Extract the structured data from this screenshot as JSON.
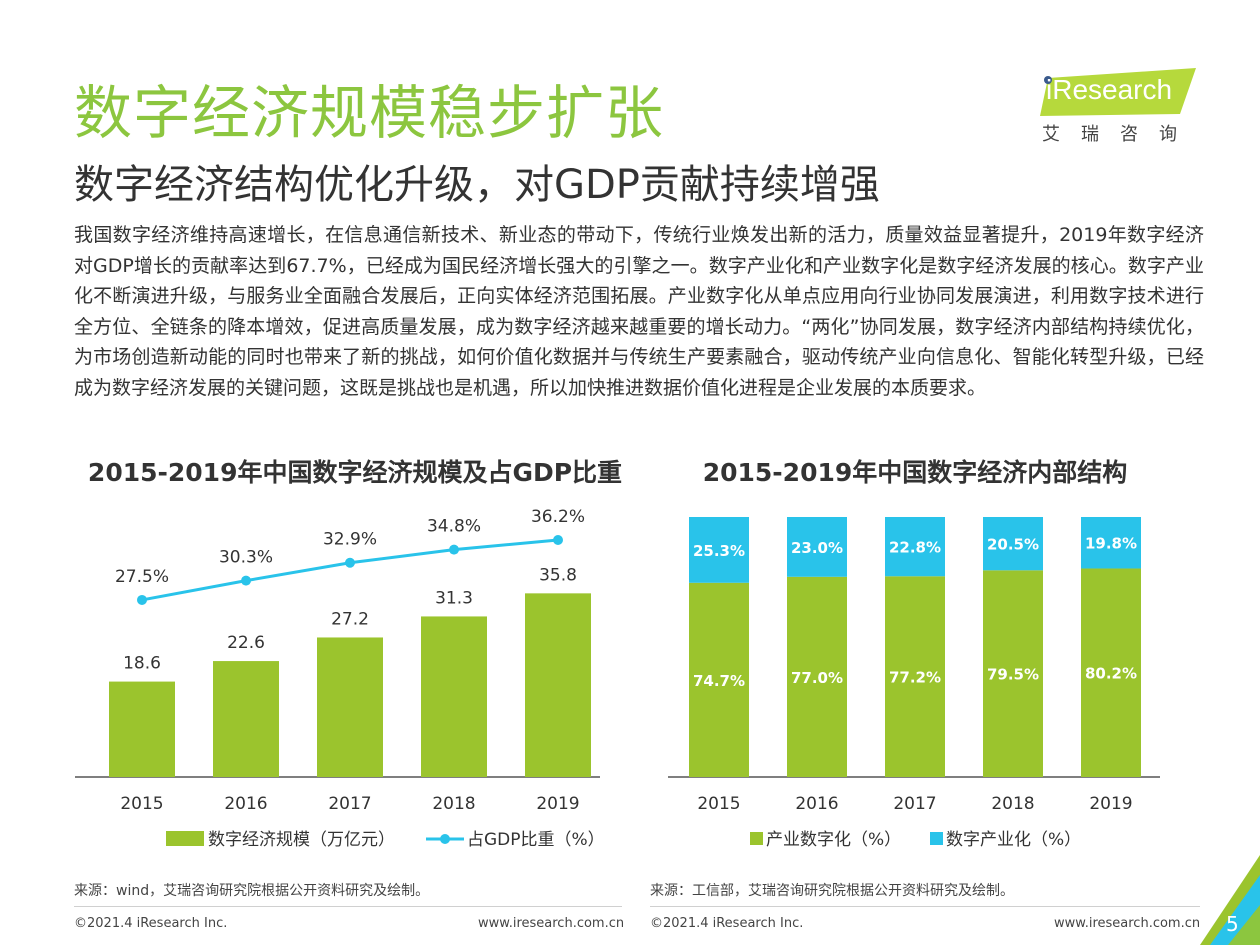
{
  "header": {
    "title": "数字经济规模稳步扩张",
    "subtitle": "数字经济结构优化升级，对GDP贡献持续增强",
    "body": "我国数字经济维持高速增长，在信息通信新技术、新业态的带动下，传统行业焕发出新的活力，质量效益显著提升，2019年数字经济对GDP增长的贡献率达到67.7%，已经成为国民经济增长强大的引擎之一。数字产业化和产业数字化是数字经济发展的核心。数字产业化不断演进升级，与服务业全面融合发展后，正向实体经济范围拓展。产业数字化从单点应用向行业协同发展演进，利用数字技术进行全方位、全链条的降本增效，促进高质量发展，成为数字经济越来越重要的增长动力。“两化”协同发展，数字经济内部结构持续优化，为市场创造新动能的同时也带来了新的挑战，如何价值化数据并与传统生产要素融合，驱动传统产业向信息化、智能化转型升级，已经成为数字经济发展的关键问题，这既是挑战也是机遇，所以加快推进数据价值化进程是企业发展的本质要求。"
  },
  "logo": {
    "text": "iResearch",
    "cn": "艾瑞咨询"
  },
  "colors": {
    "green": "#9bc42d",
    "blue": "#29c3ea",
    "title_green": "#8cc63f",
    "logo_green": "#b6d93c",
    "logo_dark": "#3a5a8c"
  },
  "chart_data": [
    {
      "type": "bar",
      "title": "2015-2019年中国数字经济规模及占GDP比重",
      "categories": [
        "2015",
        "2016",
        "2017",
        "2018",
        "2019"
      ],
      "series": [
        {
          "name": "数字经济规模（万亿元）",
          "type": "bar",
          "values": [
            18.6,
            22.6,
            27.2,
            31.3,
            35.8
          ],
          "labels": [
            "18.6",
            "22.6",
            "27.2",
            "31.3",
            "35.8"
          ]
        },
        {
          "name": "占GDP比重（%）",
          "type": "line",
          "values": [
            27.5,
            30.3,
            32.9,
            34.8,
            36.2
          ],
          "labels": [
            "27.5%",
            "30.3%",
            "32.9%",
            "34.8%",
            "36.2%"
          ]
        }
      ],
      "legend_position": "bottom",
      "grid": false
    },
    {
      "type": "bar",
      "stacked": true,
      "title": "2015-2019年中国数字经济内部结构",
      "categories": [
        "2015",
        "2016",
        "2017",
        "2018",
        "2019"
      ],
      "series": [
        {
          "name": "产业数字化（%）",
          "values": [
            74.7,
            77.0,
            77.2,
            79.5,
            80.2
          ],
          "labels": [
            "74.7%",
            "77.0%",
            "77.2%",
            "79.5%",
            "80.2%"
          ]
        },
        {
          "name": "数字产业化（%）",
          "values": [
            25.3,
            23.0,
            22.8,
            20.5,
            19.8
          ],
          "labels": [
            "25.3%",
            "23.0%",
            "22.8%",
            "20.5%",
            "19.8%"
          ]
        }
      ],
      "ylim": [
        0,
        100
      ],
      "legend_position": "bottom",
      "grid": false
    }
  ],
  "footer": {
    "source_left": "来源：wind，艾瑞咨询研究院根据公开资料研究及绘制。",
    "source_right": "来源：工信部，艾瑞咨询研究院根据公开资料研究及绘制。",
    "copyright_left": "©2021.4 iResearch Inc.",
    "url_left": "www.iresearch.com.cn",
    "copyright_right": "©2021.4 iResearch Inc.",
    "url_right": "www.iresearch.com.cn",
    "page_number": "5"
  }
}
